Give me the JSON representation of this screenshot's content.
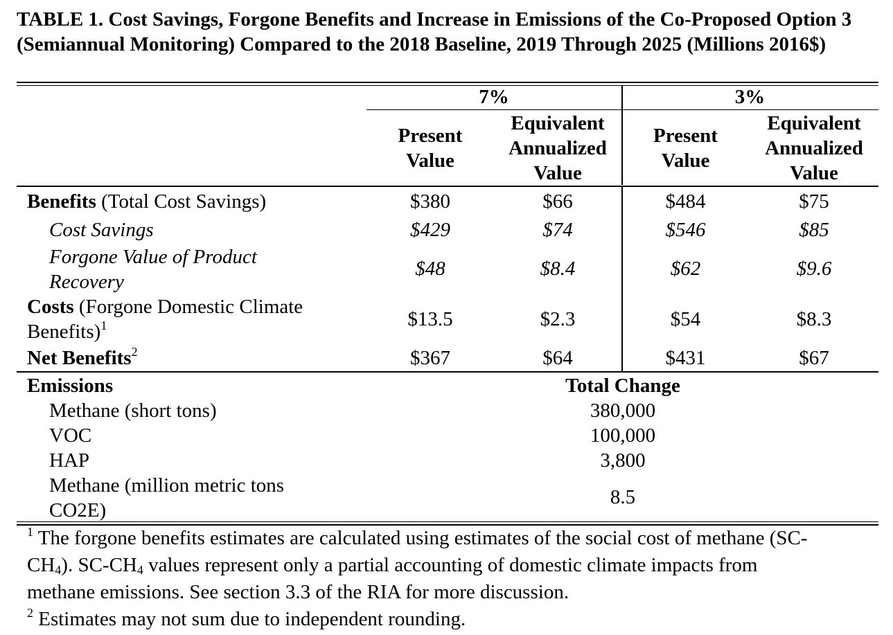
{
  "table": {
    "title": "TABLE 1. Cost Savings, Forgone Benefits and Increase in Emissions of the Co-Proposed Option 3 (Semiannual Monitoring) Compared to the 2018 Baseline, 2019 Through 2025 (Millions 2016$)",
    "header": {
      "group_7": "7%",
      "group_3": "3%",
      "pv_line1": "Present",
      "pv_line2": "Value",
      "eav_line1": "Equivalent",
      "eav_line2": "Annualized",
      "eav_line3": "Value"
    },
    "rows": {
      "benefits": {
        "label_bold": "Benefits",
        "label_rest": " (Total Cost Savings)",
        "values": [
          "$380",
          "$66",
          "$484",
          "$75"
        ]
      },
      "cost_savings": {
        "label": "Cost Savings",
        "values": [
          "$429",
          "$74",
          "$546",
          "$85"
        ]
      },
      "forgone_value": {
        "label_line1": "Forgone Value of Product",
        "label_line2": "Recovery",
        "values": [
          "$48",
          "$8.4",
          "$62",
          "$9.6"
        ]
      },
      "costs": {
        "label_bold": "Costs",
        "label_rest": " (Forgone Domestic Climate",
        "label_line2": "Benefits)",
        "sup": "1",
        "values": [
          "$13.5",
          "$2.3",
          "$54",
          "$8.3"
        ]
      },
      "net_benefits": {
        "label": "Net Benefits",
        "sup": "2",
        "values": [
          "$367",
          "$64",
          "$431",
          "$67"
        ]
      }
    },
    "emissions": {
      "header": "Emissions",
      "total_change_header": "Total Change",
      "rows": [
        {
          "label": "Methane (short tons)",
          "value": "380,000"
        },
        {
          "label": "VOC",
          "value": "100,000"
        },
        {
          "label": "HAP",
          "value": "3,800"
        },
        {
          "label_line1": "Methane (million metric tons",
          "label_line2": "CO2E)",
          "value": "8.5"
        }
      ]
    },
    "footnotes": {
      "note1_mark": "1",
      "note1_line1": "The forgone benefits estimates are calculated using estimates of the social cost of methane (SC-",
      "note1_line2_a": "CH",
      "note1_line2_sub1": "4",
      "note1_line2_b": "). SC-CH",
      "note1_line2_sub2": "4",
      "note1_line2_c": " values represent only a partial accounting of domestic climate impacts from",
      "note1_line3": "methane emissions. See section 3.3 of the RIA for more discussion.",
      "note2_mark": "2",
      "note2_text": " Estimates may not sum due to independent rounding."
    }
  }
}
